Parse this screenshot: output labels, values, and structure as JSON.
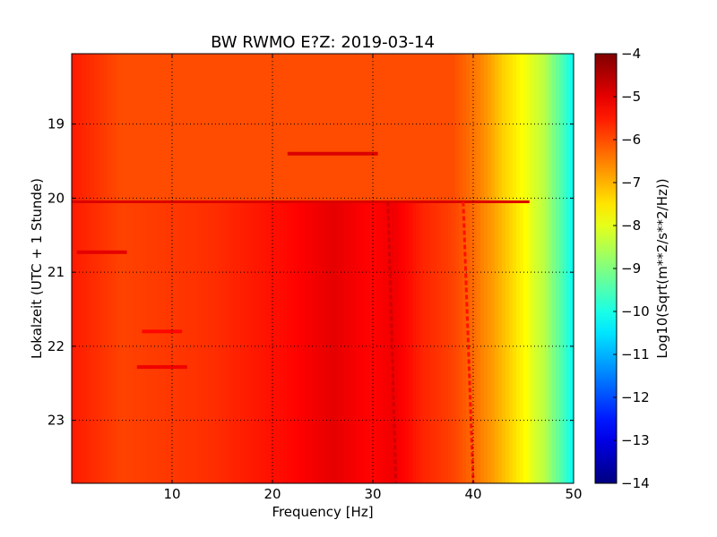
{
  "chart_data": {
    "type": "heatmap",
    "title": "BW RWMO E?Z: 2019-03-14",
    "xlabel": "Frequency [Hz]",
    "ylabel": "Lokalzeit (UTC + 1 Stunde)",
    "xlim": [
      0,
      50
    ],
    "ylim": [
      18.05,
      23.85
    ],
    "y_inverted": true,
    "x_ticks": [
      {
        "value": 10,
        "label": "10"
      },
      {
        "value": 20,
        "label": "20"
      },
      {
        "value": 30,
        "label": "30"
      },
      {
        "value": 40,
        "label": "40"
      },
      {
        "value": 50,
        "label": "50"
      }
    ],
    "y_ticks": [
      {
        "value": 19,
        "label": "19"
      },
      {
        "value": 20,
        "label": "20"
      },
      {
        "value": 21,
        "label": "21"
      },
      {
        "value": 22,
        "label": "22"
      },
      {
        "value": 23,
        "label": "23"
      }
    ],
    "grid": true,
    "colormap": "jet",
    "colorbar": {
      "label": "Log10(Sqrt(m**2/s**2/Hz))",
      "range": [
        -14,
        -4
      ],
      "ticks": [
        {
          "value": -4,
          "label": "−4"
        },
        {
          "value": -5,
          "label": "−5"
        },
        {
          "value": -6,
          "label": "−6"
        },
        {
          "value": -7,
          "label": "−7"
        },
        {
          "value": -8,
          "label": "−8"
        },
        {
          "value": -9,
          "label": "−9"
        },
        {
          "value": -10,
          "label": "−10"
        },
        {
          "value": -11,
          "label": "−11"
        },
        {
          "value": -12,
          "label": "−12"
        },
        {
          "value": -13,
          "label": "−13"
        },
        {
          "value": -14,
          "label": "−14"
        }
      ]
    },
    "spectral_profile_before_2005": [
      {
        "freq": 0,
        "value": -5.5
      },
      {
        "freq": 5,
        "value": -6.0
      },
      {
        "freq": 20,
        "value": -6.0
      },
      {
        "freq": 38,
        "value": -6.0
      },
      {
        "freq": 41,
        "value": -6.6
      },
      {
        "freq": 43,
        "value": -7.3
      },
      {
        "freq": 45,
        "value": -7.8
      },
      {
        "freq": 47,
        "value": -8.4
      },
      {
        "freq": 49,
        "value": -9.6
      },
      {
        "freq": 50,
        "value": -10.2
      }
    ],
    "spectral_profile_after_2005": [
      {
        "freq": 0,
        "value": -5.5
      },
      {
        "freq": 5,
        "value": -5.9
      },
      {
        "freq": 14,
        "value": -5.7
      },
      {
        "freq": 22,
        "value": -5.3
      },
      {
        "freq": 26,
        "value": -5.0
      },
      {
        "freq": 30,
        "value": -5.3
      },
      {
        "freq": 32,
        "value": -5.1
      },
      {
        "freq": 35,
        "value": -5.6
      },
      {
        "freq": 38,
        "value": -5.9
      },
      {
        "freq": 40,
        "value": -6.3
      },
      {
        "freq": 42,
        "value": -6.8
      },
      {
        "freq": 44,
        "value": -7.4
      },
      {
        "freq": 46,
        "value": -8.0
      },
      {
        "freq": 48,
        "value": -8.9
      },
      {
        "freq": 50,
        "value": -10.2
      }
    ],
    "level_change_time": 20.05,
    "band_upper_edge_after_change": 45.6,
    "transient_features": [
      {
        "freq_from": 21.5,
        "freq_to": 30.5,
        "time": 19.4,
        "value": -4.9
      },
      {
        "freq_from": 0.5,
        "freq_to": 5.5,
        "time": 20.73,
        "value": -5.0
      },
      {
        "freq_from": 7.0,
        "freq_to": 11.0,
        "time": 21.8,
        "value": -5.3
      },
      {
        "freq_from": 6.5,
        "freq_to": 11.5,
        "time": 22.28,
        "value": -5.1
      }
    ],
    "tonal_lines": [
      {
        "name": "line-near-32hz",
        "freq_at_start": 31.5,
        "freq_at_end": 32.3,
        "value": -4.8
      },
      {
        "name": "line-near-40hz",
        "freq_at_start": 39.0,
        "freq_at_end": 40.0,
        "value": -5.4
      }
    ]
  }
}
